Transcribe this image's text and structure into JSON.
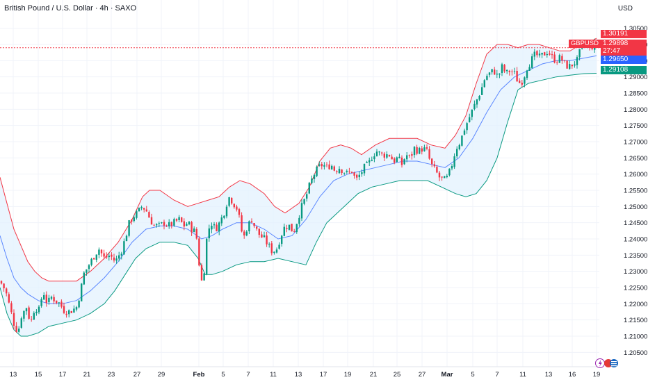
{
  "header": {
    "title": "British Pound / U.S. Dollar · 4h · SAXO",
    "currency": "USD"
  },
  "colors": {
    "up": "#089981",
    "down": "#f23645",
    "upper_band": "#f23645",
    "middle_band": "#2962ff",
    "lower_band": "#089981",
    "band_fill": "#e3f2fd"
  },
  "price_labels": {
    "upper": "1.30191",
    "symbol": "GBPUSD",
    "last": "1.29898",
    "countdown": "27:47",
    "middle": "1.29650",
    "lower": "1.29108"
  },
  "icons": [
    "lightning-icon",
    "flag-icons"
  ],
  "chart_data": {
    "type": "candlestick",
    "title": "British Pound / U.S. Dollar · 4h · SAXO",
    "ylim": [
      1.2025,
      1.3075
    ],
    "y_ticks": [
      "1.30500",
      "1.30000",
      "1.29500",
      "1.29000",
      "1.28500",
      "1.28000",
      "1.27500",
      "1.27000",
      "1.26500",
      "1.26000",
      "1.25500",
      "1.25000",
      "1.24500",
      "1.24000",
      "1.23500",
      "1.23000",
      "1.22500",
      "1.22000",
      "1.21500",
      "1.21000",
      "1.20500"
    ],
    "x_ticks": [
      "13",
      "15",
      "17",
      "21",
      "23",
      "27",
      "29",
      "Feb",
      "5",
      "7",
      "11",
      "13",
      "17",
      "19",
      "21",
      "25",
      "27",
      "Mar",
      "5",
      "7",
      "11",
      "13",
      "16",
      "19"
    ],
    "close_path": [
      [
        0,
        1.227
      ],
      [
        8,
        1.224
      ],
      [
        14,
        1.219
      ],
      [
        20,
        1.214
      ],
      [
        26,
        1.211
      ],
      [
        30,
        1.216
      ],
      [
        38,
        1.219
      ],
      [
        44,
        1.214
      ],
      [
        50,
        1.219
      ],
      [
        56,
        1.218
      ],
      [
        62,
        1.224
      ],
      [
        68,
        1.22
      ],
      [
        74,
        1.222
      ],
      [
        80,
        1.221
      ],
      [
        86,
        1.22
      ],
      [
        92,
        1.218
      ],
      [
        98,
        1.2175
      ],
      [
        104,
        1.218
      ],
      [
        110,
        1.219
      ],
      [
        116,
        1.224
      ],
      [
        120,
        1.229
      ],
      [
        128,
        1.232
      ],
      [
        136,
        1.235
      ],
      [
        142,
        1.237
      ],
      [
        150,
        1.234
      ],
      [
        158,
        1.235
      ],
      [
        166,
        1.233
      ],
      [
        174,
        1.236
      ],
      [
        180,
        1.24
      ],
      [
        186,
        1.245
      ],
      [
        192,
        1.247
      ],
      [
        198,
        1.248
      ],
      [
        204,
        1.25
      ],
      [
        210,
        1.249
      ],
      [
        216,
        1.246
      ],
      [
        222,
        1.244
      ],
      [
        230,
        1.244
      ],
      [
        236,
        1.245
      ],
      [
        242,
        1.244
      ],
      [
        250,
        1.245
      ],
      [
        258,
        1.246
      ],
      [
        264,
        1.244
      ],
      [
        270,
        1.245
      ],
      [
        276,
        1.243
      ],
      [
        282,
        1.242
      ],
      [
        286,
        1.233
      ],
      [
        290,
        1.227
      ],
      [
        294,
        1.231
      ],
      [
        298,
        1.242
      ],
      [
        304,
        1.245
      ],
      [
        310,
        1.243
      ],
      [
        316,
        1.245
      ],
      [
        322,
        1.248
      ],
      [
        326,
        1.251
      ],
      [
        330,
        1.253
      ],
      [
        336,
        1.251
      ],
      [
        342,
        1.249
      ],
      [
        346,
        1.244
      ],
      [
        350,
        1.24
      ],
      [
        356,
        1.244
      ],
      [
        362,
        1.246
      ],
      [
        368,
        1.243
      ],
      [
        374,
        1.241
      ],
      [
        380,
        1.24
      ],
      [
        386,
        1.238
      ],
      [
        392,
        1.236
      ],
      [
        398,
        1.237
      ],
      [
        404,
        1.241
      ],
      [
        410,
        1.244
      ],
      [
        416,
        1.244
      ],
      [
        422,
        1.242
      ],
      [
        428,
        1.246
      ],
      [
        434,
        1.25
      ],
      [
        440,
        1.253
      ],
      [
        446,
        1.257
      ],
      [
        452,
        1.26
      ],
      [
        458,
        1.262
      ],
      [
        464,
        1.263
      ],
      [
        470,
        1.262
      ],
      [
        476,
        1.263
      ],
      [
        482,
        1.261
      ],
      [
        488,
        1.262
      ],
      [
        494,
        1.261
      ],
      [
        500,
        1.26
      ],
      [
        506,
        1.261
      ],
      [
        512,
        1.258
      ],
      [
        518,
        1.26
      ],
      [
        524,
        1.262
      ],
      [
        530,
        1.263
      ],
      [
        536,
        1.266
      ],
      [
        542,
        1.267
      ],
      [
        548,
        1.266
      ],
      [
        554,
        1.266
      ],
      [
        560,
        1.266
      ],
      [
        566,
        1.264
      ],
      [
        572,
        1.265
      ],
      [
        578,
        1.263
      ],
      [
        584,
        1.266
      ],
      [
        590,
        1.265
      ],
      [
        596,
        1.268
      ],
      [
        602,
        1.267
      ],
      [
        608,
        1.268
      ],
      [
        614,
        1.267
      ],
      [
        620,
        1.263
      ],
      [
        626,
        1.261
      ],
      [
        632,
        1.259
      ],
      [
        638,
        1.258
      ],
      [
        644,
        1.259
      ],
      [
        650,
        1.263
      ],
      [
        656,
        1.268
      ],
      [
        662,
        1.27
      ],
      [
        668,
        1.274
      ],
      [
        674,
        1.277
      ],
      [
        680,
        1.28
      ],
      [
        686,
        1.283
      ],
      [
        692,
        1.286
      ],
      [
        698,
        1.29
      ],
      [
        704,
        1.291
      ],
      [
        710,
        1.292
      ],
      [
        716,
        1.29
      ],
      [
        722,
        1.293
      ],
      [
        728,
        1.291
      ],
      [
        734,
        1.292
      ],
      [
        740,
        1.291
      ],
      [
        746,
        1.288
      ],
      [
        752,
        1.289
      ],
      [
        758,
        1.293
      ],
      [
        764,
        1.295
      ],
      [
        770,
        1.297
      ],
      [
        776,
        1.296
      ],
      [
        782,
        1.297
      ],
      [
        788,
        1.298
      ],
      [
        794,
        1.296
      ],
      [
        800,
        1.295
      ],
      [
        806,
        1.296
      ],
      [
        812,
        1.294
      ],
      [
        818,
        1.293
      ],
      [
        824,
        1.294
      ],
      [
        830,
        1.295
      ],
      [
        836,
        1.299
      ],
      [
        842,
        1.3
      ],
      [
        848,
        1.2985
      ],
      [
        854,
        1.3
      ],
      [
        858,
        1.299
      ]
    ],
    "bollinger": {
      "upper": [
        [
          0,
          1.259
        ],
        [
          10,
          1.251
        ],
        [
          20,
          1.243
        ],
        [
          30,
          1.238
        ],
        [
          40,
          1.233
        ],
        [
          50,
          1.23
        ],
        [
          60,
          1.228
        ],
        [
          70,
          1.227
        ],
        [
          90,
          1.227
        ],
        [
          110,
          1.227
        ],
        [
          130,
          1.23
        ],
        [
          150,
          1.234
        ],
        [
          170,
          1.239
        ],
        [
          190,
          1.246
        ],
        [
          205,
          1.253
        ],
        [
          215,
          1.255
        ],
        [
          230,
          1.255
        ],
        [
          250,
          1.252
        ],
        [
          270,
          1.25
        ],
        [
          285,
          1.251
        ],
        [
          300,
          1.252
        ],
        [
          315,
          1.253
        ],
        [
          330,
          1.256
        ],
        [
          345,
          1.258
        ],
        [
          360,
          1.257
        ],
        [
          380,
          1.254
        ],
        [
          395,
          1.25
        ],
        [
          410,
          1.248
        ],
        [
          430,
          1.251
        ],
        [
          445,
          1.256
        ],
        [
          460,
          1.264
        ],
        [
          475,
          1.268
        ],
        [
          490,
          1.269
        ],
        [
          505,
          1.268
        ],
        [
          520,
          1.266
        ],
        [
          540,
          1.269
        ],
        [
          560,
          1.271
        ],
        [
          580,
          1.271
        ],
        [
          600,
          1.271
        ],
        [
          620,
          1.269
        ],
        [
          640,
          1.268
        ],
        [
          655,
          1.272
        ],
        [
          670,
          1.278
        ],
        [
          685,
          1.288
        ],
        [
          700,
          1.297
        ],
        [
          715,
          1.3
        ],
        [
          730,
          1.3
        ],
        [
          745,
          1.299
        ],
        [
          760,
          1.3
        ],
        [
          775,
          1.3
        ],
        [
          790,
          1.299
        ],
        [
          805,
          1.298
        ],
        [
          820,
          1.298
        ],
        [
          835,
          1.3
        ],
        [
          850,
          1.301
        ],
        [
          858,
          1.3019
        ]
      ],
      "middle": [
        [
          0,
          1.241
        ],
        [
          10,
          1.234
        ],
        [
          20,
          1.228
        ],
        [
          30,
          1.225
        ],
        [
          40,
          1.223
        ],
        [
          55,
          1.221
        ],
        [
          70,
          1.22
        ],
        [
          90,
          1.22
        ],
        [
          110,
          1.221
        ],
        [
          130,
          1.224
        ],
        [
          150,
          1.228
        ],
        [
          170,
          1.233
        ],
        [
          190,
          1.239
        ],
        [
          210,
          1.243
        ],
        [
          230,
          1.244
        ],
        [
          250,
          1.244
        ],
        [
          270,
          1.243
        ],
        [
          290,
          1.24
        ],
        [
          305,
          1.241
        ],
        [
          320,
          1.243
        ],
        [
          340,
          1.245
        ],
        [
          360,
          1.245
        ],
        [
          380,
          1.243
        ],
        [
          400,
          1.24
        ],
        [
          420,
          1.241
        ],
        [
          440,
          1.246
        ],
        [
          460,
          1.253
        ],
        [
          480,
          1.258
        ],
        [
          500,
          1.26
        ],
        [
          520,
          1.261
        ],
        [
          540,
          1.262
        ],
        [
          560,
          1.263
        ],
        [
          580,
          1.264
        ],
        [
          600,
          1.264
        ],
        [
          620,
          1.263
        ],
        [
          640,
          1.262
        ],
        [
          660,
          1.265
        ],
        [
          680,
          1.271
        ],
        [
          700,
          1.279
        ],
        [
          720,
          1.286
        ],
        [
          740,
          1.29
        ],
        [
          760,
          1.292
        ],
        [
          780,
          1.294
        ],
        [
          800,
          1.295
        ],
        [
          820,
          1.295
        ],
        [
          840,
          1.2958
        ],
        [
          858,
          1.2965
        ]
      ],
      "lower": [
        [
          0,
          1.225
        ],
        [
          10,
          1.217
        ],
        [
          20,
          1.212
        ],
        [
          30,
          1.21
        ],
        [
          40,
          1.21
        ],
        [
          55,
          1.211
        ],
        [
          70,
          1.213
        ],
        [
          90,
          1.214
        ],
        [
          110,
          1.215
        ],
        [
          130,
          1.217
        ],
        [
          150,
          1.22
        ],
        [
          165,
          1.224
        ],
        [
          180,
          1.229
        ],
        [
          195,
          1.234
        ],
        [
          210,
          1.237
        ],
        [
          230,
          1.239
        ],
        [
          250,
          1.239
        ],
        [
          270,
          1.238
        ],
        [
          285,
          1.234
        ],
        [
          295,
          1.229
        ],
        [
          305,
          1.229
        ],
        [
          320,
          1.23
        ],
        [
          340,
          1.232
        ],
        [
          360,
          1.233
        ],
        [
          380,
          1.233
        ],
        [
          400,
          1.234
        ],
        [
          420,
          1.233
        ],
        [
          440,
          1.232
        ],
        [
          455,
          1.239
        ],
        [
          470,
          1.245
        ],
        [
          485,
          1.248
        ],
        [
          500,
          1.251
        ],
        [
          515,
          1.254
        ],
        [
          535,
          1.256
        ],
        [
          555,
          1.257
        ],
        [
          575,
          1.258
        ],
        [
          595,
          1.258
        ],
        [
          615,
          1.258
        ],
        [
          635,
          1.256
        ],
        [
          655,
          1.254
        ],
        [
          670,
          1.253
        ],
        [
          685,
          1.254
        ],
        [
          700,
          1.258
        ],
        [
          715,
          1.265
        ],
        [
          730,
          1.276
        ],
        [
          745,
          1.286
        ],
        [
          760,
          1.288
        ],
        [
          780,
          1.289
        ],
        [
          800,
          1.29
        ],
        [
          820,
          1.2905
        ],
        [
          840,
          1.291
        ],
        [
          858,
          1.2911
        ]
      ]
    },
    "last_price": 1.29898,
    "grid": true,
    "legend": "none"
  }
}
